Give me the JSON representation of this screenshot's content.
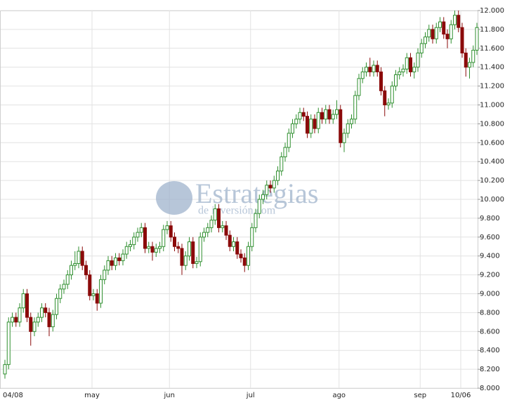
{
  "chart_data": {
    "type": "candlestick",
    "watermark": {
      "title": "Estrategias",
      "subtitle": "de inversión.com"
    },
    "categories": [
      "04/08",
      null,
      null,
      null,
      null,
      null,
      null,
      null,
      null,
      null,
      null,
      null,
      null,
      null,
      null,
      null,
      null,
      null,
      null,
      null,
      null,
      null,
      null,
      null,
      "may",
      null,
      null,
      null,
      null,
      null,
      null,
      null,
      null,
      null,
      null,
      null,
      null,
      null,
      null,
      null,
      null,
      null,
      null,
      null,
      null,
      "jun",
      null,
      null,
      null,
      null,
      null,
      null,
      null,
      null,
      null,
      null,
      null,
      null,
      null,
      null,
      null,
      null,
      null,
      null,
      null,
      null,
      null,
      "jul",
      null,
      null,
      null,
      null,
      null,
      null,
      null,
      null,
      null,
      null,
      null,
      null,
      null,
      null,
      null,
      null,
      null,
      null,
      null,
      null,
      null,
      null,
      null,
      "ago",
      null,
      null,
      null,
      null,
      null,
      null,
      null,
      null,
      null,
      null,
      null,
      null,
      null,
      null,
      null,
      null,
      null,
      null,
      null,
      null,
      null,
      "sep",
      null,
      null,
      null,
      null,
      null,
      null,
      null,
      null,
      null,
      null,
      "10/06",
      null,
      null,
      null,
      null
    ],
    "open": [
      8150,
      8250,
      8700,
      8750,
      8700,
      8850,
      9000,
      8750,
      8600,
      8700,
      8750,
      8850,
      8800,
      8650,
      8780,
      8950,
      9050,
      9100,
      9200,
      9300,
      9320,
      9450,
      9300,
      9200,
      8980,
      9000,
      8900,
      9150,
      9250,
      9350,
      9300,
      9380,
      9350,
      9420,
      9500,
      9520,
      9600,
      9650,
      9700,
      9480,
      9500,
      9440,
      9480,
      9500,
      9680,
      9720,
      9600,
      9500,
      9480,
      9300,
      9400,
      9550,
      9320,
      9340,
      9600,
      9650,
      9700,
      9780,
      9900,
      9700,
      9720,
      9620,
      9500,
      9550,
      9420,
      9380,
      9300,
      9500,
      9700,
      9850,
      10000,
      10050,
      10150,
      10120,
      10200,
      10300,
      10450,
      10550,
      10700,
      10800,
      10850,
      10920,
      10880,
      10700,
      10850,
      10750,
      10920,
      10850,
      10950,
      10850,
      10900,
      10950,
      10600,
      10700,
      10800,
      10850,
      11100,
      11280,
      11350,
      11400,
      11350,
      11420,
      11350,
      11150,
      11000,
      11020,
      11200,
      11320,
      11350,
      11380,
      11500,
      11350,
      11400,
      11550,
      11650,
      11720,
      11800,
      11700,
      11820,
      11880,
      11750,
      11700,
      11850,
      11950,
      11820,
      11550,
      11400,
      11450,
      11580
    ],
    "high": [
      8300,
      8750,
      8800,
      8800,
      8900,
      9050,
      9050,
      8800,
      8750,
      8800,
      8900,
      8900,
      8850,
      8830,
      9000,
      9100,
      9150,
      9250,
      9350,
      9450,
      9500,
      9500,
      9350,
      9250,
      9050,
      9050,
      9200,
      9300,
      9400,
      9400,
      9430,
      9430,
      9470,
      9550,
      9570,
      9650,
      9700,
      9750,
      9750,
      9550,
      9550,
      9530,
      9550,
      9730,
      9770,
      9770,
      9650,
      9550,
      9530,
      9450,
      9600,
      9600,
      9390,
      9650,
      9700,
      9750,
      9830,
      9950,
      9950,
      9770,
      9770,
      9670,
      9600,
      9600,
      9470,
      9430,
      9550,
      9750,
      9900,
      10050,
      10100,
      10200,
      10200,
      10250,
      10350,
      10500,
      10600,
      10750,
      10850,
      10900,
      10970,
      10970,
      10930,
      10900,
      10900,
      10970,
      10970,
      11000,
      11000,
      10950,
      11050,
      11000,
      10750,
      10850,
      10900,
      11150,
      11330,
      11400,
      11450,
      11500,
      11470,
      11470,
      11400,
      11200,
      11070,
      11250,
      11370,
      11400,
      11430,
      11550,
      11550,
      11450,
      11600,
      11700,
      11770,
      11850,
      11850,
      11870,
      11930,
      11930,
      11800,
      11900,
      12000,
      12000,
      11870,
      11600,
      11500,
      11630,
      11870
    ],
    "low": [
      8100,
      8200,
      8650,
      8650,
      8650,
      8800,
      8700,
      8450,
      8550,
      8650,
      8700,
      8750,
      8550,
      8600,
      8730,
      8900,
      9000,
      9050,
      9150,
      9250,
      9270,
      9250,
      9150,
      8930,
      8930,
      8820,
      8850,
      9100,
      9200,
      9250,
      9250,
      9300,
      9300,
      9370,
      9450,
      9470,
      9550,
      9600,
      9430,
      9430,
      9350,
      9390,
      9430,
      9450,
      9630,
      9550,
      9450,
      9430,
      9200,
      9250,
      9350,
      9270,
      9270,
      9290,
      9550,
      9600,
      9650,
      9730,
      9650,
      9650,
      9570,
      9450,
      9450,
      9370,
      9330,
      9230,
      9250,
      9450,
      9650,
      9800,
      9950,
      10000,
      10070,
      10070,
      10150,
      10250,
      10400,
      10500,
      10650,
      10750,
      10800,
      10830,
      10650,
      10650,
      10700,
      10700,
      10800,
      10800,
      10800,
      10800,
      10850,
      10550,
      10500,
      10650,
      10750,
      10800,
      11050,
      11230,
      11300,
      11300,
      11300,
      11300,
      11100,
      10880,
      10950,
      10970,
      11150,
      11270,
      11300,
      11330,
      11300,
      11280,
      11350,
      11500,
      11600,
      11670,
      11650,
      11650,
      11770,
      11700,
      11600,
      11650,
      11800,
      11770,
      11500,
      11300,
      11280,
      11400,
      11530
    ],
    "close": [
      8250,
      8700,
      8750,
      8700,
      8850,
      9000,
      8750,
      8600,
      8700,
      8750,
      8850,
      8800,
      8650,
      8780,
      8950,
      9050,
      9100,
      9200,
      9300,
      9320,
      9450,
      9300,
      9200,
      8980,
      9000,
      8900,
      9150,
      9250,
      9350,
      9300,
      9380,
      9350,
      9420,
      9500,
      9520,
      9600,
      9650,
      9700,
      9480,
      9500,
      9440,
      9480,
      9500,
      9680,
      9720,
      9600,
      9500,
      9480,
      9300,
      9400,
      9550,
      9320,
      9340,
      9600,
      9650,
      9700,
      9780,
      9900,
      9700,
      9720,
      9620,
      9500,
      9550,
      9420,
      9380,
      9300,
      9500,
      9700,
      9850,
      10000,
      10050,
      10150,
      10120,
      10200,
      10300,
      10450,
      10550,
      10700,
      10800,
      10850,
      10920,
      10880,
      10700,
      10850,
      10750,
      10920,
      10850,
      10950,
      10850,
      10900,
      10950,
      10600,
      10700,
      10800,
      10850,
      11100,
      11280,
      11350,
      11400,
      11350,
      11420,
      11350,
      11150,
      11000,
      11020,
      11200,
      11320,
      11350,
      11380,
      11500,
      11350,
      11400,
      11550,
      11650,
      11720,
      11800,
      11700,
      11820,
      11880,
      11750,
      11700,
      11850,
      11950,
      11820,
      11550,
      11400,
      11450,
      11580,
      11820
    ],
    "up_color": "#2f8f2f",
    "down_color": "#8b0a0a",
    "ylim": [
      8000,
      12000
    ],
    "yticks": [
      {
        "value": 8000,
        "label": "8.000"
      },
      {
        "value": 8200,
        "label": "8.200"
      },
      {
        "value": 8400,
        "label": "8.400"
      },
      {
        "value": 8600,
        "label": "8.600"
      },
      {
        "value": 8800,
        "label": "8.800"
      },
      {
        "value": 9000,
        "label": "9.000"
      },
      {
        "value": 9200,
        "label": "9.200"
      },
      {
        "value": 9400,
        "label": "9.400"
      },
      {
        "value": 9600,
        "label": "9.600"
      },
      {
        "value": 9800,
        "label": "9.800"
      },
      {
        "value": 10000,
        "label": "10.000"
      },
      {
        "value": 10200,
        "label": "10.200"
      },
      {
        "value": 10400,
        "label": "10.400"
      },
      {
        "value": 10600,
        "label": "10.600"
      },
      {
        "value": 10800,
        "label": "10.800"
      },
      {
        "value": 11000,
        "label": "11.000"
      },
      {
        "value": 11200,
        "label": "11.200"
      },
      {
        "value": 11400,
        "label": "11.400"
      },
      {
        "value": 11600,
        "label": "11.600"
      },
      {
        "value": 11800,
        "label": "11.800"
      },
      {
        "value": 12000,
        "label": "12.000"
      }
    ],
    "grid": true
  }
}
